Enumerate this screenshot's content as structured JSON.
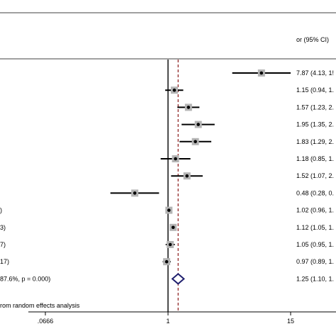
{
  "chart_data": {
    "type": "forest",
    "column_header": "or (95% CI)",
    "footnote": "rom random effects analysis",
    "x_scale": "log",
    "xlim": [
      0.0666,
      15
    ],
    "x_ticks": [
      ".0666",
      "1",
      "15"
    ],
    "x_tick_values": [
      0.0666,
      1,
      15
    ],
    "null_line": 1,
    "pooled_line": 1.25,
    "studies": [
      {
        "label": "",
        "or": 7.87,
        "lo": 4.13,
        "hi": 15.0,
        "ci_text": "7.87 (4.13, 1!"
      },
      {
        "label": "",
        "or": 1.15,
        "lo": 0.94,
        "hi": 1.4,
        "ci_text": "1.15 (0.94, 1."
      },
      {
        "label": "",
        "or": 1.57,
        "lo": 1.23,
        "hi": 2.0,
        "ci_text": "1.57 (1.23, 2."
      },
      {
        "label": "",
        "or": 1.95,
        "lo": 1.35,
        "hi": 2.8,
        "ci_text": "1.95 (1.35, 2."
      },
      {
        "label": "",
        "or": 1.83,
        "lo": 1.29,
        "hi": 2.6,
        "ci_text": "1.83 (1.29, 2."
      },
      {
        "label": "",
        "or": 1.18,
        "lo": 0.85,
        "hi": 1.64,
        "ci_text": "1.18 (0.85, 1."
      },
      {
        "label": "",
        "or": 1.52,
        "lo": 1.07,
        "hi": 2.15,
        "ci_text": "1.52 (1.07, 2."
      },
      {
        "label": "",
        "or": 0.48,
        "lo": 0.28,
        "hi": 0.82,
        "ci_text": "0.48 (0.28, 0."
      },
      {
        "label": ")",
        "or": 1.02,
        "lo": 0.96,
        "hi": 1.09,
        "ci_text": "1.02 (0.96, 1."
      },
      {
        "label": "3)",
        "or": 1.12,
        "lo": 1.05,
        "hi": 1.19,
        "ci_text": "1.12 (1.05, 1."
      },
      {
        "label": "7)",
        "or": 1.05,
        "lo": 0.95,
        "hi": 1.16,
        "ci_text": "1.05 (0.95, 1."
      },
      {
        "label": "17)",
        "or": 0.97,
        "lo": 0.89,
        "hi": 1.06,
        "ci_text": "0.97 (0.89, 1."
      }
    ],
    "overall": {
      "label": "87.6%, p = 0.000)",
      "or": 1.25,
      "lo": 1.1,
      "hi": 1.42,
      "ci_text": "1.25 (1.10, 1."
    }
  }
}
